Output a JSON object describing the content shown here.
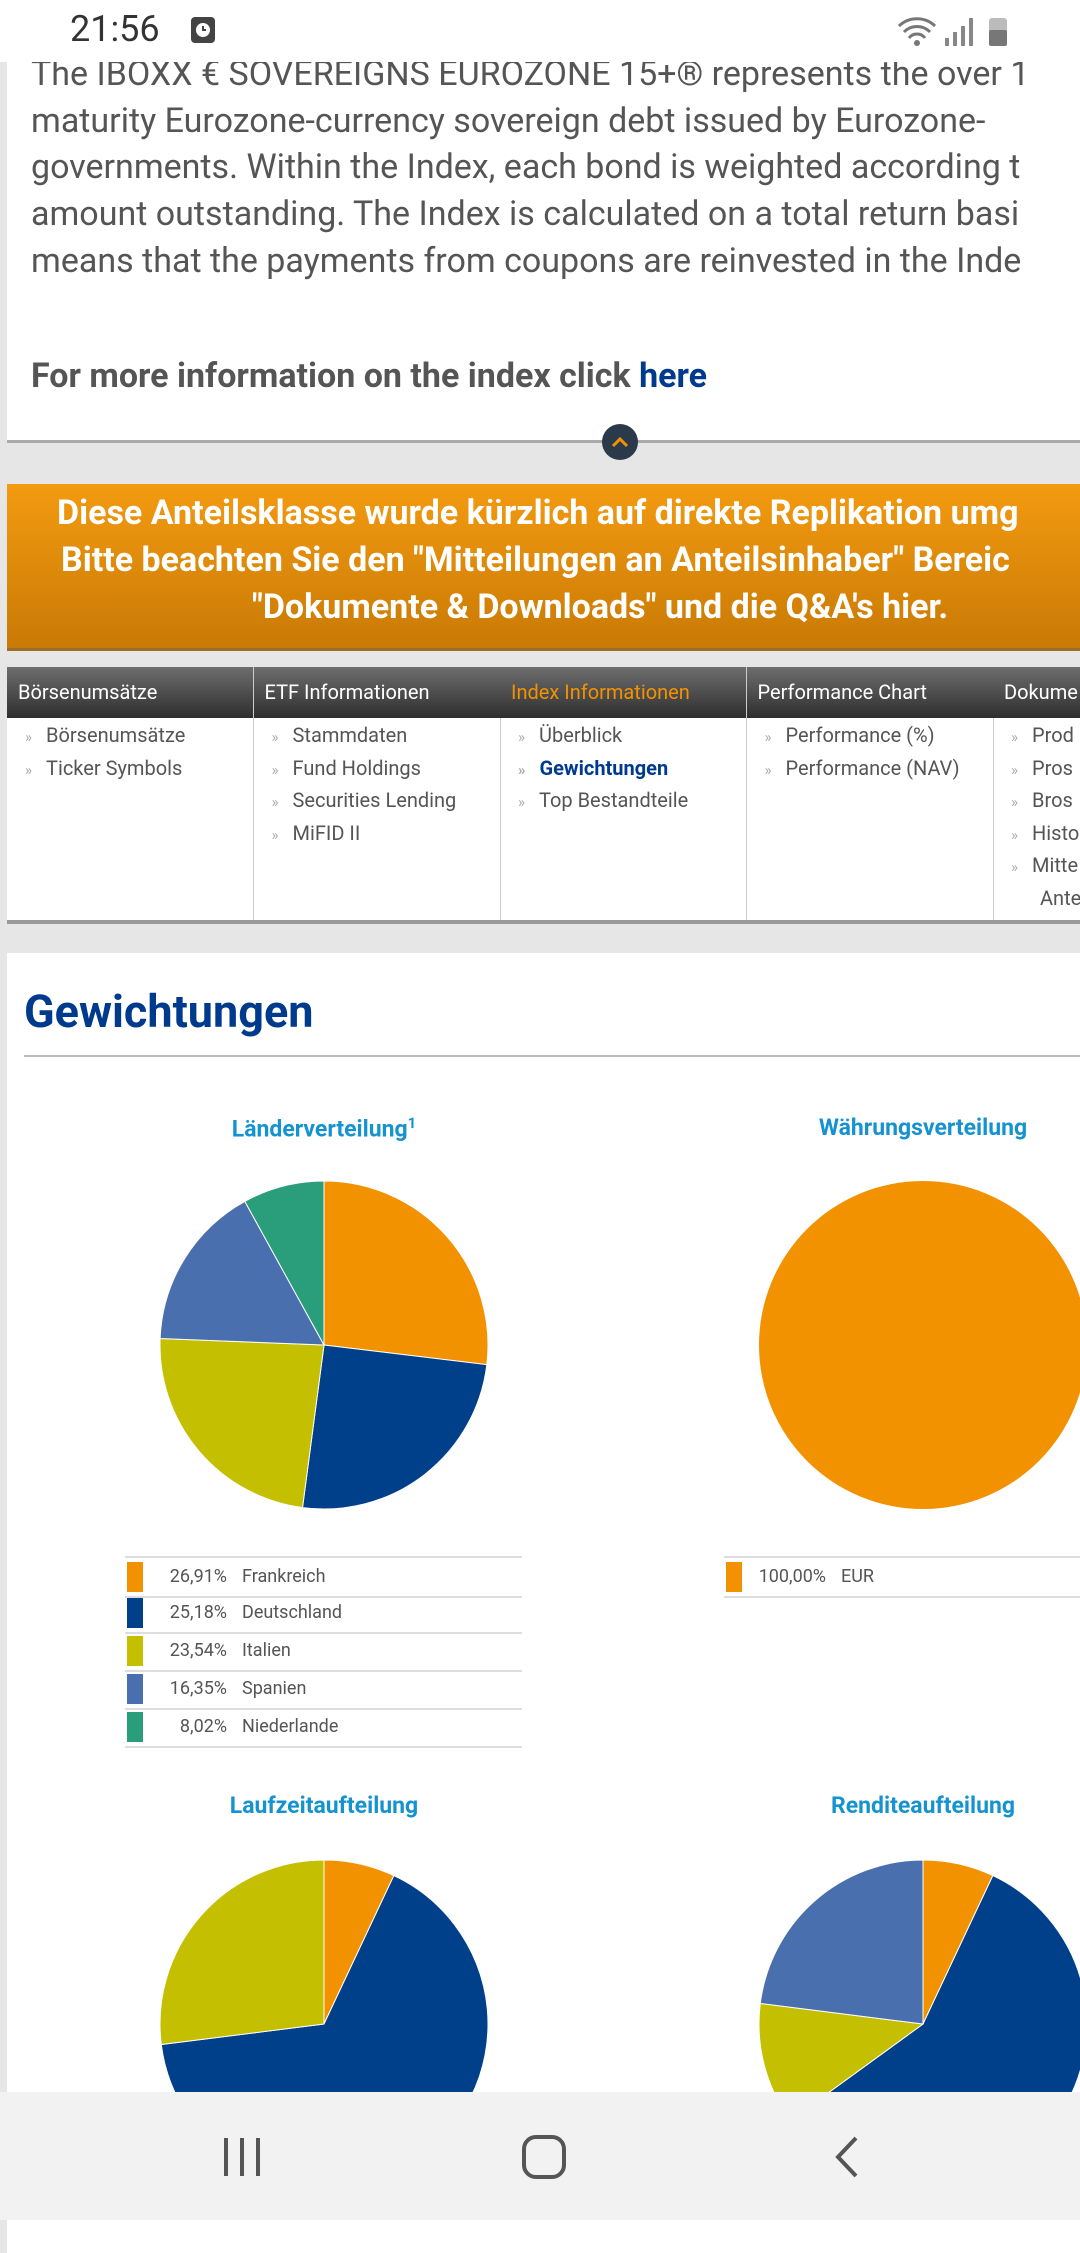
{
  "status_bar": {
    "time": "21:56"
  },
  "description": {
    "lines": [
      "The IBOXX € SOVEREIGNS EUROZONE 15+® represents the over 1",
      "maturity Eurozone-currency sovereign debt issued by Eurozone-",
      "governments. Within the Index, each bond is weighted according t",
      "amount outstanding. The Index is calculated on a total return basi",
      "means that the payments from coupons are reinvested in the Inde"
    ],
    "more_info": "For more information on the index click",
    "link": "here"
  },
  "notice": {
    "lines": [
      "Diese Anteilsklasse wurde kürzlich auf direkte Replikation umg",
      "Bitte beachten Sie den \"Mitteilungen an Anteilsinhaber\" Bereic",
      "\"Dokumente & Downloads\" und die Q&A's hier."
    ]
  },
  "nav": [
    {
      "header": "Börsenumsätze",
      "items": [
        "Börsenumsätze",
        "Ticker Symbols"
      ]
    },
    {
      "header": "ETF Informationen",
      "items": [
        "Stammdaten",
        "Fund Holdings",
        "Securities Lending",
        "MiFID II"
      ]
    },
    {
      "header": "Index Informationen",
      "items": [
        "Überblick",
        "Gewichtungen",
        "Top Bestandteile"
      ]
    },
    {
      "header": "Performance Chart",
      "items": [
        "Performance (%)",
        "Performance (NAV)"
      ]
    },
    {
      "header": "Dokume",
      "items": [
        "Prod",
        "Pros",
        "Bros",
        "Histo",
        "Mitte",
        "Ante"
      ]
    }
  ],
  "section_title": "Gewichtungen",
  "charts": [
    {
      "type": "pie",
      "title": "Länderverteilung",
      "footnote": "1",
      "categories": [
        "Frankreich",
        "Deutschland",
        "Italien",
        "Spanien",
        "Niederlande"
      ],
      "values": [
        26.91,
        25.18,
        23.54,
        16.35,
        8.02
      ],
      "value_labels": [
        "26,91%",
        "25,18%",
        "23,54%",
        "16,35%",
        "8,02%"
      ],
      "colors": [
        "#f39200",
        "#003f8a",
        "#c4bf00",
        "#4a6fae",
        "#2a9d7b"
      ]
    },
    {
      "type": "pie",
      "title": "Währungsverteilung",
      "categories": [
        "EUR"
      ],
      "values": [
        100
      ],
      "value_labels": [
        "100,00%"
      ],
      "colors": [
        "#f39200"
      ]
    },
    {
      "type": "pie",
      "title": "Laufzeitaufteilung",
      "values": [
        7,
        66,
        27
      ],
      "colors": [
        "#f39200",
        "#003f8a",
        "#c4bf00"
      ]
    },
    {
      "type": "pie",
      "title": "Renditeaufteilung",
      "values": [
        7,
        58,
        12,
        23
      ],
      "colors": [
        "#f39200",
        "#003f8a",
        "#c4bf00",
        "#4a6fae"
      ]
    }
  ]
}
